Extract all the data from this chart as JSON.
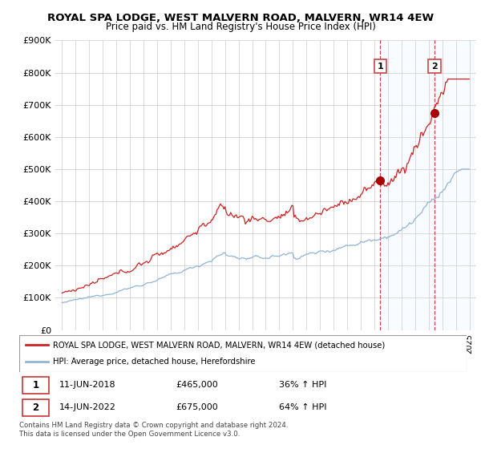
{
  "title": "ROYAL SPA LODGE, WEST MALVERN ROAD, MALVERN, WR14 4EW",
  "subtitle": "Price paid vs. HM Land Registry's House Price Index (HPI)",
  "ylim": [
    0,
    900000
  ],
  "yticks": [
    0,
    100000,
    200000,
    300000,
    400000,
    500000,
    600000,
    700000,
    800000,
    900000
  ],
  "ytick_labels": [
    "£0",
    "£100K",
    "£200K",
    "£300K",
    "£400K",
    "£500K",
    "£600K",
    "£700K",
    "£800K",
    "£900K"
  ],
  "x_start_year": 1995,
  "x_end_year": 2025,
  "transaction1_date": 2018.44,
  "transaction1_value": 465000,
  "transaction2_date": 2022.44,
  "transaction2_value": 675000,
  "hpi_color": "#92b4d4",
  "price_color": "#cc2222",
  "marker_color": "#aa0000",
  "vline_color": "#cc4444",
  "shade_color": "#ddeeff",
  "legend_label_price": "ROYAL SPA LODGE, WEST MALVERN ROAD, MALVERN, WR14 4EW (detached house)",
  "legend_label_hpi": "HPI: Average price, detached house, Herefordshire",
  "footnote": "Contains HM Land Registry data © Crown copyright and database right 2024.\nThis data is licensed under the Open Government Licence v3.0."
}
